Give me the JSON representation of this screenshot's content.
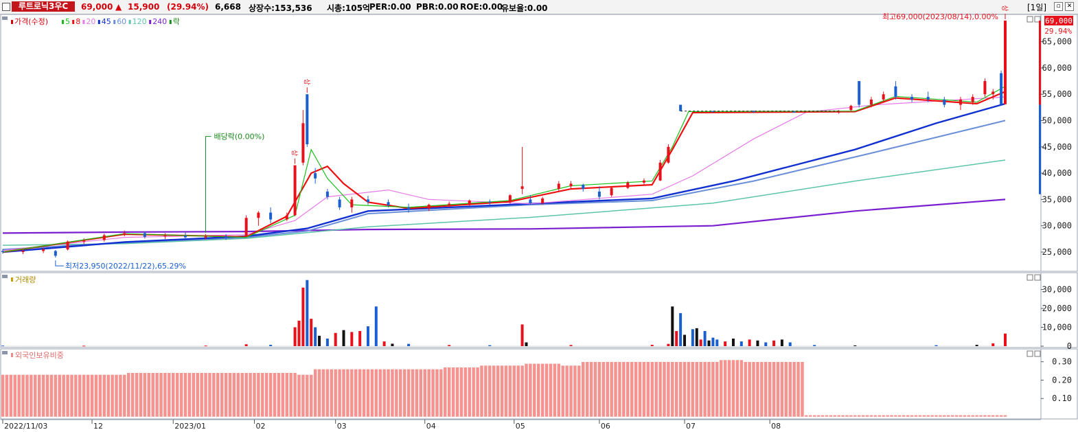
{
  "header": {
    "stock_name": "루트로닉3우C",
    "price": "69,000",
    "change_arrow": "up-arrow-icon",
    "change": "15,900",
    "change_pct": "(29.94%)",
    "volume": "6,668",
    "listed_shares": "상장수:153,536",
    "market_cap": "시총:105억",
    "per": "PER:0.00",
    "pbr": "PBR:0.00",
    "roe": "ROE:0.00",
    "float_ratio": "유보율:0.00",
    "period": "[1일]",
    "colors": {
      "up": "#e8111b",
      "down": "#1a5fd0",
      "name_bg": "#c4151c"
    }
  },
  "price_panel": {
    "legend": [
      {
        "text": "가격(수정)",
        "color": "#d4000b"
      },
      {
        "text": "5",
        "color": "#19c019"
      },
      {
        "text": "8",
        "color": "#ee1010"
      },
      {
        "text": "20",
        "color": "#e679e6"
      },
      {
        "text": "45",
        "color": "#1030d0"
      },
      {
        "text": "60",
        "color": "#6a8fd8"
      },
      {
        "text": "120",
        "color": "#5cc4a8"
      },
      {
        "text": "240",
        "color": "#7a1fd0"
      },
      {
        "text": "락",
        "color": "#1a8a1a"
      }
    ],
    "y_ticks": [
      "65,000",
      "60,000",
      "55,000",
      "50,000",
      "45,000",
      "40,000",
      "35,000",
      "30,000",
      "25,000"
    ],
    "current_price_tag": "69,000",
    "current_pct_tag": "29.94%",
    "high_annotation": "최고69,000(2023/08/14),0.00%",
    "low_annotation": "최저23,950(2022/11/22),65.29%",
    "dividend_annotation": "배당락(0.00%)",
    "limit_up_marks": [
      "상",
      "상",
      "상"
    ]
  },
  "volume_panel": {
    "title": "거래량",
    "y_ticks": [
      "30,000",
      "20,000",
      "10,000",
      "0"
    ]
  },
  "foreign_panel": {
    "title": "외국인보유비중",
    "y_ticks": [
      "0.30",
      "0.20",
      "0.10"
    ]
  },
  "x_axis": {
    "labels": [
      "2022/11/03",
      "12",
      "2023/01",
      "02",
      "03",
      "04",
      "05",
      "06",
      "07",
      "08"
    ]
  },
  "chart_data": {
    "type": "candlestick",
    "x_range": [
      "2022/11/03",
      "2023/08/14"
    ],
    "price_ylim": [
      22000,
      69000
    ],
    "ohlc": [
      {
        "i": 0,
        "o": 25200,
        "h": 25600,
        "l": 24700,
        "c": 25000
      },
      {
        "i": 5,
        "o": 25000,
        "h": 25500,
        "l": 24600,
        "c": 25200
      },
      {
        "i": 10,
        "o": 25200,
        "h": 25800,
        "l": 24800,
        "c": 25500
      },
      {
        "i": 13,
        "o": 25200,
        "h": 25400,
        "l": 23950,
        "c": 24300
      },
      {
        "i": 16,
        "o": 25500,
        "h": 27200,
        "l": 25300,
        "c": 27000
      },
      {
        "i": 20,
        "o": 27000,
        "h": 27600,
        "l": 26500,
        "c": 27200
      },
      {
        "i": 25,
        "o": 27300,
        "h": 28500,
        "l": 27000,
        "c": 28200
      },
      {
        "i": 30,
        "o": 28300,
        "h": 29100,
        "l": 28000,
        "c": 28600
      },
      {
        "i": 35,
        "o": 28600,
        "h": 28900,
        "l": 27600,
        "c": 27900
      },
      {
        "i": 40,
        "o": 28000,
        "h": 28600,
        "l": 27500,
        "c": 28200
      },
      {
        "i": 45,
        "o": 28100,
        "h": 28700,
        "l": 27500,
        "c": 27800
      },
      {
        "i": 50,
        "o": 27800,
        "h": 28400,
        "l": 27400,
        "c": 28000
      },
      {
        "i": 55,
        "o": 28000,
        "h": 28400,
        "l": 27300,
        "c": 27700
      },
      {
        "i": 60,
        "o": 28000,
        "h": 32000,
        "l": 28000,
        "c": 31500
      },
      {
        "i": 63,
        "o": 31500,
        "h": 32800,
        "l": 30000,
        "c": 32500
      },
      {
        "i": 66,
        "o": 32500,
        "h": 33500,
        "l": 30500,
        "c": 31200
      },
      {
        "i": 70,
        "o": 31200,
        "h": 32500,
        "l": 30900,
        "c": 32000
      },
      {
        "i": 72,
        "o": 32000,
        "h": 41500,
        "l": 31800,
        "c": 41500
      },
      {
        "i": 74,
        "o": 42000,
        "h": 52000,
        "l": 41500,
        "c": 49500
      },
      {
        "i": 75,
        "o": 55000,
        "h": 55000,
        "l": 45000,
        "c": 45500
      },
      {
        "i": 77,
        "o": 40000,
        "h": 41000,
        "l": 38000,
        "c": 39000
      },
      {
        "i": 80,
        "o": 36500,
        "h": 37000,
        "l": 35000,
        "c": 35500
      },
      {
        "i": 83,
        "o": 35000,
        "h": 35500,
        "l": 33000,
        "c": 33500
      },
      {
        "i": 86,
        "o": 33500,
        "h": 35500,
        "l": 32500,
        "c": 35000
      },
      {
        "i": 90,
        "o": 35000,
        "h": 35700,
        "l": 34000,
        "c": 34500
      },
      {
        "i": 95,
        "o": 34500,
        "h": 35000,
        "l": 33500,
        "c": 33900
      },
      {
        "i": 100,
        "o": 33500,
        "h": 34200,
        "l": 32500,
        "c": 33000
      },
      {
        "i": 105,
        "o": 33300,
        "h": 34200,
        "l": 32800,
        "c": 34000
      },
      {
        "i": 110,
        "o": 34000,
        "h": 34600,
        "l": 33500,
        "c": 34200
      },
      {
        "i": 115,
        "o": 34200,
        "h": 35000,
        "l": 33800,
        "c": 34800
      },
      {
        "i": 120,
        "o": 34600,
        "h": 35000,
        "l": 34000,
        "c": 34400
      },
      {
        "i": 125,
        "o": 34500,
        "h": 36000,
        "l": 34200,
        "c": 35800
      },
      {
        "i": 128,
        "o": 37000,
        "h": 45000,
        "l": 36000,
        "c": 37500
      },
      {
        "i": 130,
        "o": 35000,
        "h": 35800,
        "l": 34000,
        "c": 34300
      },
      {
        "i": 133,
        "o": 34300,
        "h": 35500,
        "l": 34000,
        "c": 35200
      },
      {
        "i": 137,
        "o": 37000,
        "h": 38500,
        "l": 36500,
        "c": 38000
      },
      {
        "i": 140,
        "o": 37500,
        "h": 38500,
        "l": 37000,
        "c": 38000
      },
      {
        "i": 143,
        "o": 37800,
        "h": 38000,
        "l": 36500,
        "c": 37000
      },
      {
        "i": 147,
        "o": 36500,
        "h": 37500,
        "l": 35000,
        "c": 35500
      },
      {
        "i": 150,
        "o": 35800,
        "h": 37500,
        "l": 35500,
        "c": 37200
      },
      {
        "i": 154,
        "o": 37200,
        "h": 38500,
        "l": 37000,
        "c": 38200
      },
      {
        "i": 158,
        "o": 38200,
        "h": 39000,
        "l": 37800,
        "c": 38600
      },
      {
        "i": 162,
        "o": 38600,
        "h": 42500,
        "l": 38500,
        "c": 42000
      },
      {
        "i": 164,
        "o": 42000,
        "h": 45500,
        "l": 41800,
        "c": 45000
      },
      {
        "i": 167,
        "o": 53000,
        "h": 53000,
        "l": 51800,
        "c": 51800
      },
      {
        "i": 175,
        "o": 51800,
        "h": 51800,
        "l": 51600,
        "c": 51600
      },
      {
        "i": 185,
        "o": 51800,
        "h": 51900,
        "l": 51500,
        "c": 51700
      },
      {
        "i": 195,
        "o": 51700,
        "h": 51800,
        "l": 51500,
        "c": 51600
      },
      {
        "i": 206,
        "o": 51500,
        "h": 52000,
        "l": 51300,
        "c": 51700
      },
      {
        "i": 209,
        "o": 52000,
        "h": 53000,
        "l": 51800,
        "c": 52800
      },
      {
        "i": 211,
        "o": 57500,
        "h": 57500,
        "l": 52500,
        "c": 53000
      },
      {
        "i": 214,
        "o": 53000,
        "h": 54500,
        "l": 52500,
        "c": 54000
      },
      {
        "i": 217,
        "o": 54000,
        "h": 55500,
        "l": 53500,
        "c": 55000
      },
      {
        "i": 220,
        "o": 56500,
        "h": 57500,
        "l": 54000,
        "c": 54500
      },
      {
        "i": 224,
        "o": 54500,
        "h": 55000,
        "l": 53500,
        "c": 54000
      },
      {
        "i": 228,
        "o": 54500,
        "h": 55500,
        "l": 53500,
        "c": 54000
      },
      {
        "i": 232,
        "o": 54000,
        "h": 54500,
        "l": 52500,
        "c": 53000
      },
      {
        "i": 236,
        "o": 53000,
        "h": 54500,
        "l": 52000,
        "c": 54000
      },
      {
        "i": 239,
        "o": 53500,
        "h": 55000,
        "l": 53000,
        "c": 54500
      },
      {
        "i": 242,
        "o": 55000,
        "h": 58000,
        "l": 54500,
        "c": 57500
      },
      {
        "i": 244,
        "o": 55000,
        "h": 56000,
        "l": 54000,
        "c": 55500
      },
      {
        "i": 246,
        "o": 59000,
        "h": 59500,
        "l": 53000,
        "c": 53100
      },
      {
        "i": 247,
        "o": 53100,
        "h": 69000,
        "l": 53100,
        "c": 69000
      }
    ],
    "volume": [
      {
        "i": 0,
        "v": 300
      },
      {
        "i": 20,
        "v": 250
      },
      {
        "i": 50,
        "v": 300
      },
      {
        "i": 60,
        "v": 1000
      },
      {
        "i": 66,
        "v": 700
      },
      {
        "i": 72,
        "v": 10000
      },
      {
        "i": 73,
        "v": 13500
      },
      {
        "i": 74,
        "v": 31000
      },
      {
        "i": 75,
        "v": 35000
      },
      {
        "i": 76,
        "v": 14500
      },
      {
        "i": 77,
        "v": 10000
      },
      {
        "i": 78,
        "v": 5500
      },
      {
        "i": 80,
        "v": 4000
      },
      {
        "i": 82,
        "v": 7000
      },
      {
        "i": 84,
        "v": 8500
      },
      {
        "i": 86,
        "v": 7500
      },
      {
        "i": 88,
        "v": 8000
      },
      {
        "i": 90,
        "v": 10500
      },
      {
        "i": 92,
        "v": 21000
      },
      {
        "i": 94,
        "v": 2500
      },
      {
        "i": 96,
        "v": 1300
      },
      {
        "i": 100,
        "v": 1200
      },
      {
        "i": 110,
        "v": 600
      },
      {
        "i": 120,
        "v": 500
      },
      {
        "i": 128,
        "v": 11500
      },
      {
        "i": 129,
        "v": 2000
      },
      {
        "i": 140,
        "v": 600
      },
      {
        "i": 160,
        "v": 700
      },
      {
        "i": 164,
        "v": 1200
      },
      {
        "i": 165,
        "v": 21000
      },
      {
        "i": 166,
        "v": 8000
      },
      {
        "i": 167,
        "v": 17500
      },
      {
        "i": 168,
        "v": 6000
      },
      {
        "i": 170,
        "v": 9000
      },
      {
        "i": 171,
        "v": 9500
      },
      {
        "i": 172,
        "v": 3500
      },
      {
        "i": 173,
        "v": 8000
      },
      {
        "i": 174,
        "v": 3000
      },
      {
        "i": 175,
        "v": 4500
      },
      {
        "i": 176,
        "v": 3500
      },
      {
        "i": 178,
        "v": 2500
      },
      {
        "i": 180,
        "v": 4000
      },
      {
        "i": 182,
        "v": 2500
      },
      {
        "i": 184,
        "v": 3500
      },
      {
        "i": 186,
        "v": 3000
      },
      {
        "i": 188,
        "v": 2000
      },
      {
        "i": 190,
        "v": 3000
      },
      {
        "i": 192,
        "v": 3500
      },
      {
        "i": 194,
        "v": 2000
      },
      {
        "i": 200,
        "v": 600
      },
      {
        "i": 210,
        "v": 400
      },
      {
        "i": 230,
        "v": 500
      },
      {
        "i": 240,
        "v": 700
      },
      {
        "i": 244,
        "v": 1500
      },
      {
        "i": 247,
        "v": 6668
      }
    ],
    "foreign_ratio": [
      {
        "from": 0,
        "to": 30,
        "v": 0.23
      },
      {
        "from": 31,
        "to": 72,
        "v": 0.24
      },
      {
        "from": 73,
        "to": 76,
        "v": 0.23
      },
      {
        "from": 77,
        "to": 108,
        "v": 0.26
      },
      {
        "from": 109,
        "to": 117,
        "v": 0.27
      },
      {
        "from": 118,
        "to": 128,
        "v": 0.28
      },
      {
        "from": 129,
        "to": 137,
        "v": 0.29
      },
      {
        "from": 138,
        "to": 142,
        "v": 0.28
      },
      {
        "from": 143,
        "to": 176,
        "v": 0.3
      },
      {
        "from": 177,
        "to": 182,
        "v": 0.31
      },
      {
        "from": 183,
        "to": 197,
        "v": 0.3
      },
      {
        "from": 198,
        "to": 247,
        "v": 0.01
      }
    ]
  }
}
